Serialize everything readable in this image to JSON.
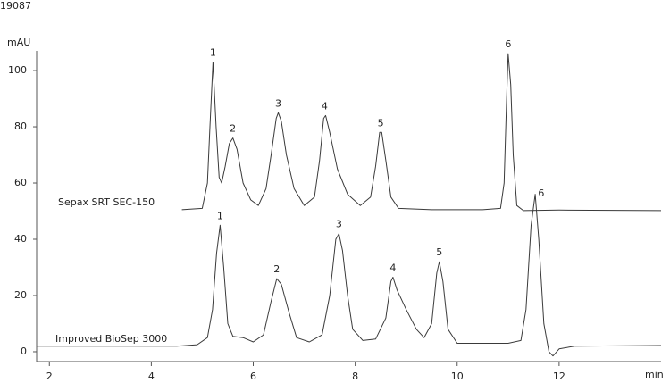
{
  "chart_data": {
    "type": "line",
    "header": "19087",
    "ylabel": "mAU",
    "xlabel": "min",
    "xlim": [
      1.75,
      14.0
    ],
    "ylim": [
      -3.5,
      107
    ],
    "xticks": [
      2,
      4,
      6,
      8,
      10,
      12
    ],
    "yticks": [
      0,
      20,
      40,
      60,
      80,
      100
    ],
    "grid": false,
    "series": [
      {
        "name": "Sepax SRT SEC-150",
        "color": "#3a3a3a",
        "x": [
          4.6,
          5.0,
          5.1,
          5.15,
          5.21,
          5.27,
          5.33,
          5.38,
          5.45,
          5.53,
          5.6,
          5.68,
          5.8,
          5.95,
          6.1,
          6.25,
          6.35,
          6.45,
          6.49,
          6.55,
          6.65,
          6.8,
          7.0,
          7.2,
          7.3,
          7.38,
          7.42,
          7.5,
          7.65,
          7.85,
          8.1,
          8.3,
          8.4,
          8.48,
          8.52,
          8.6,
          8.7,
          8.85,
          9.5,
          10.5,
          10.85,
          10.92,
          10.97,
          11.0,
          11.05,
          11.1,
          11.17,
          11.3,
          12.0,
          14.0
        ],
        "values": [
          50.5,
          51,
          60,
          80,
          103,
          80,
          62,
          60,
          66,
          74,
          76,
          72,
          60,
          54,
          52,
          58,
          70,
          83,
          85,
          82,
          70,
          58,
          52,
          55,
          68,
          83,
          84,
          78,
          65,
          56,
          52,
          55,
          66,
          78,
          78,
          68,
          55,
          51,
          50.5,
          50.5,
          51,
          60,
          90,
          106,
          95,
          70,
          52,
          50.2,
          50.4,
          50.2
        ]
      },
      {
        "name": "Improved BioSep 3000",
        "color": "#3a3a3a",
        "x": [
          1.75,
          4.5,
          4.9,
          5.1,
          5.2,
          5.28,
          5.35,
          5.42,
          5.5,
          5.6,
          5.8,
          6.0,
          6.2,
          6.35,
          6.46,
          6.55,
          6.7,
          6.85,
          7.1,
          7.35,
          7.5,
          7.62,
          7.68,
          7.75,
          7.85,
          7.95,
          8.15,
          8.4,
          8.6,
          8.7,
          8.74,
          8.82,
          9.0,
          9.2,
          9.35,
          9.5,
          9.6,
          9.65,
          9.72,
          9.82,
          10.0,
          10.5,
          11.0,
          11.25,
          11.35,
          11.45,
          11.53,
          11.6,
          11.7,
          11.8,
          11.88,
          12.0,
          12.3,
          14.0
        ],
        "values": [
          2,
          2,
          2.5,
          5,
          15,
          35,
          45,
          30,
          10,
          5.5,
          5,
          3.5,
          6,
          18,
          26,
          24,
          14,
          5,
          3.5,
          6,
          20,
          40,
          42,
          36,
          20,
          8,
          4,
          4.5,
          12,
          25,
          26.5,
          22,
          15,
          8,
          5,
          10,
          28,
          32,
          25,
          8,
          3,
          3,
          3,
          4,
          15,
          45,
          56,
          40,
          10,
          0,
          -1.5,
          1,
          2,
          2.2
        ]
      }
    ],
    "annotations": [
      {
        "text": "1",
        "x": 5.21,
        "y": 103
      },
      {
        "text": "2",
        "x": 5.6,
        "y": 76
      },
      {
        "text": "3",
        "x": 6.49,
        "y": 85
      },
      {
        "text": "4",
        "x": 7.4,
        "y": 84
      },
      {
        "text": "5",
        "x": 8.5,
        "y": 78
      },
      {
        "text": "6",
        "x": 11.0,
        "y": 106
      },
      {
        "text": "1",
        "x": 5.35,
        "y": 45
      },
      {
        "text": "2",
        "x": 6.46,
        "y": 26
      },
      {
        "text": "3",
        "x": 7.68,
        "y": 42
      },
      {
        "text": "4",
        "x": 8.74,
        "y": 26.5
      },
      {
        "text": "5",
        "x": 9.65,
        "y": 32
      },
      {
        "text": "6",
        "x": 11.65,
        "y": 53
      }
    ]
  }
}
